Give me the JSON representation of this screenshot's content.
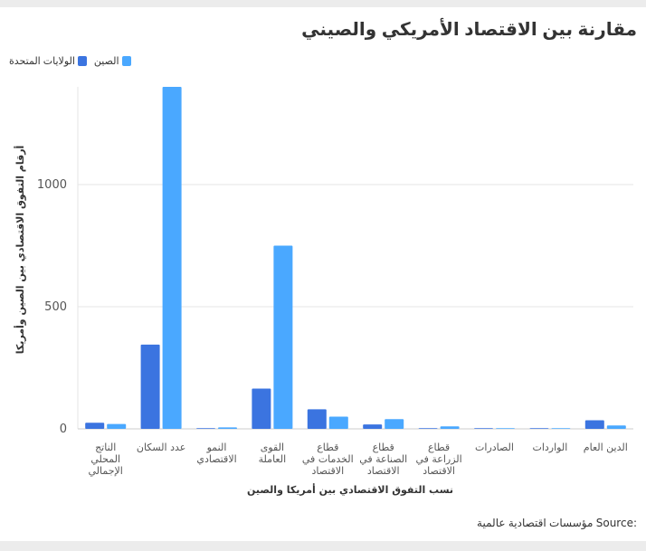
{
  "chart_data": {
    "type": "bar",
    "title": "مقارنة بين الاقتصاد الأمريكي والصيني",
    "xlabel": "نسب التفوق الاقتصادي بين أمريكا والصين",
    "ylabel": "أرقام التفوق الاقتصادي بين الصين وأمريكا",
    "ylim": [
      0,
      1400
    ],
    "yticks": [
      0,
      500,
      1000
    ],
    "grid": true,
    "legend_position": "top-left",
    "categories": [
      [
        "الناتج",
        "المحلي",
        "الإجمالي"
      ],
      [
        "عدد السكان"
      ],
      [
        "النمو",
        "الاقتصادي"
      ],
      [
        "القوى",
        "العاملة"
      ],
      [
        "قطاع",
        "الخدمات في",
        "الاقتصاد"
      ],
      [
        "قطاع",
        "الصناعة في",
        "الاقتصاد"
      ],
      [
        "قطاع",
        "الزراعة في",
        "الاقتصاد"
      ],
      [
        "الصادرات"
      ],
      [
        "الواردات"
      ],
      [
        "الدين العام"
      ]
    ],
    "series": [
      {
        "name": "الولايات المتحدة",
        "color": "#3b74e0",
        "values": [
          25,
          345,
          2,
          165,
          80,
          18,
          2,
          1.6,
          2.5,
          35
        ]
      },
      {
        "name": "الصين",
        "color": "#4aa8ff",
        "values": [
          20,
          1400,
          6,
          750,
          50,
          40,
          10,
          2.1,
          2.1,
          14
        ]
      }
    ]
  },
  "source": {
    "label": "Source:",
    "text": "مؤسسات اقتصادية عالمية"
  }
}
